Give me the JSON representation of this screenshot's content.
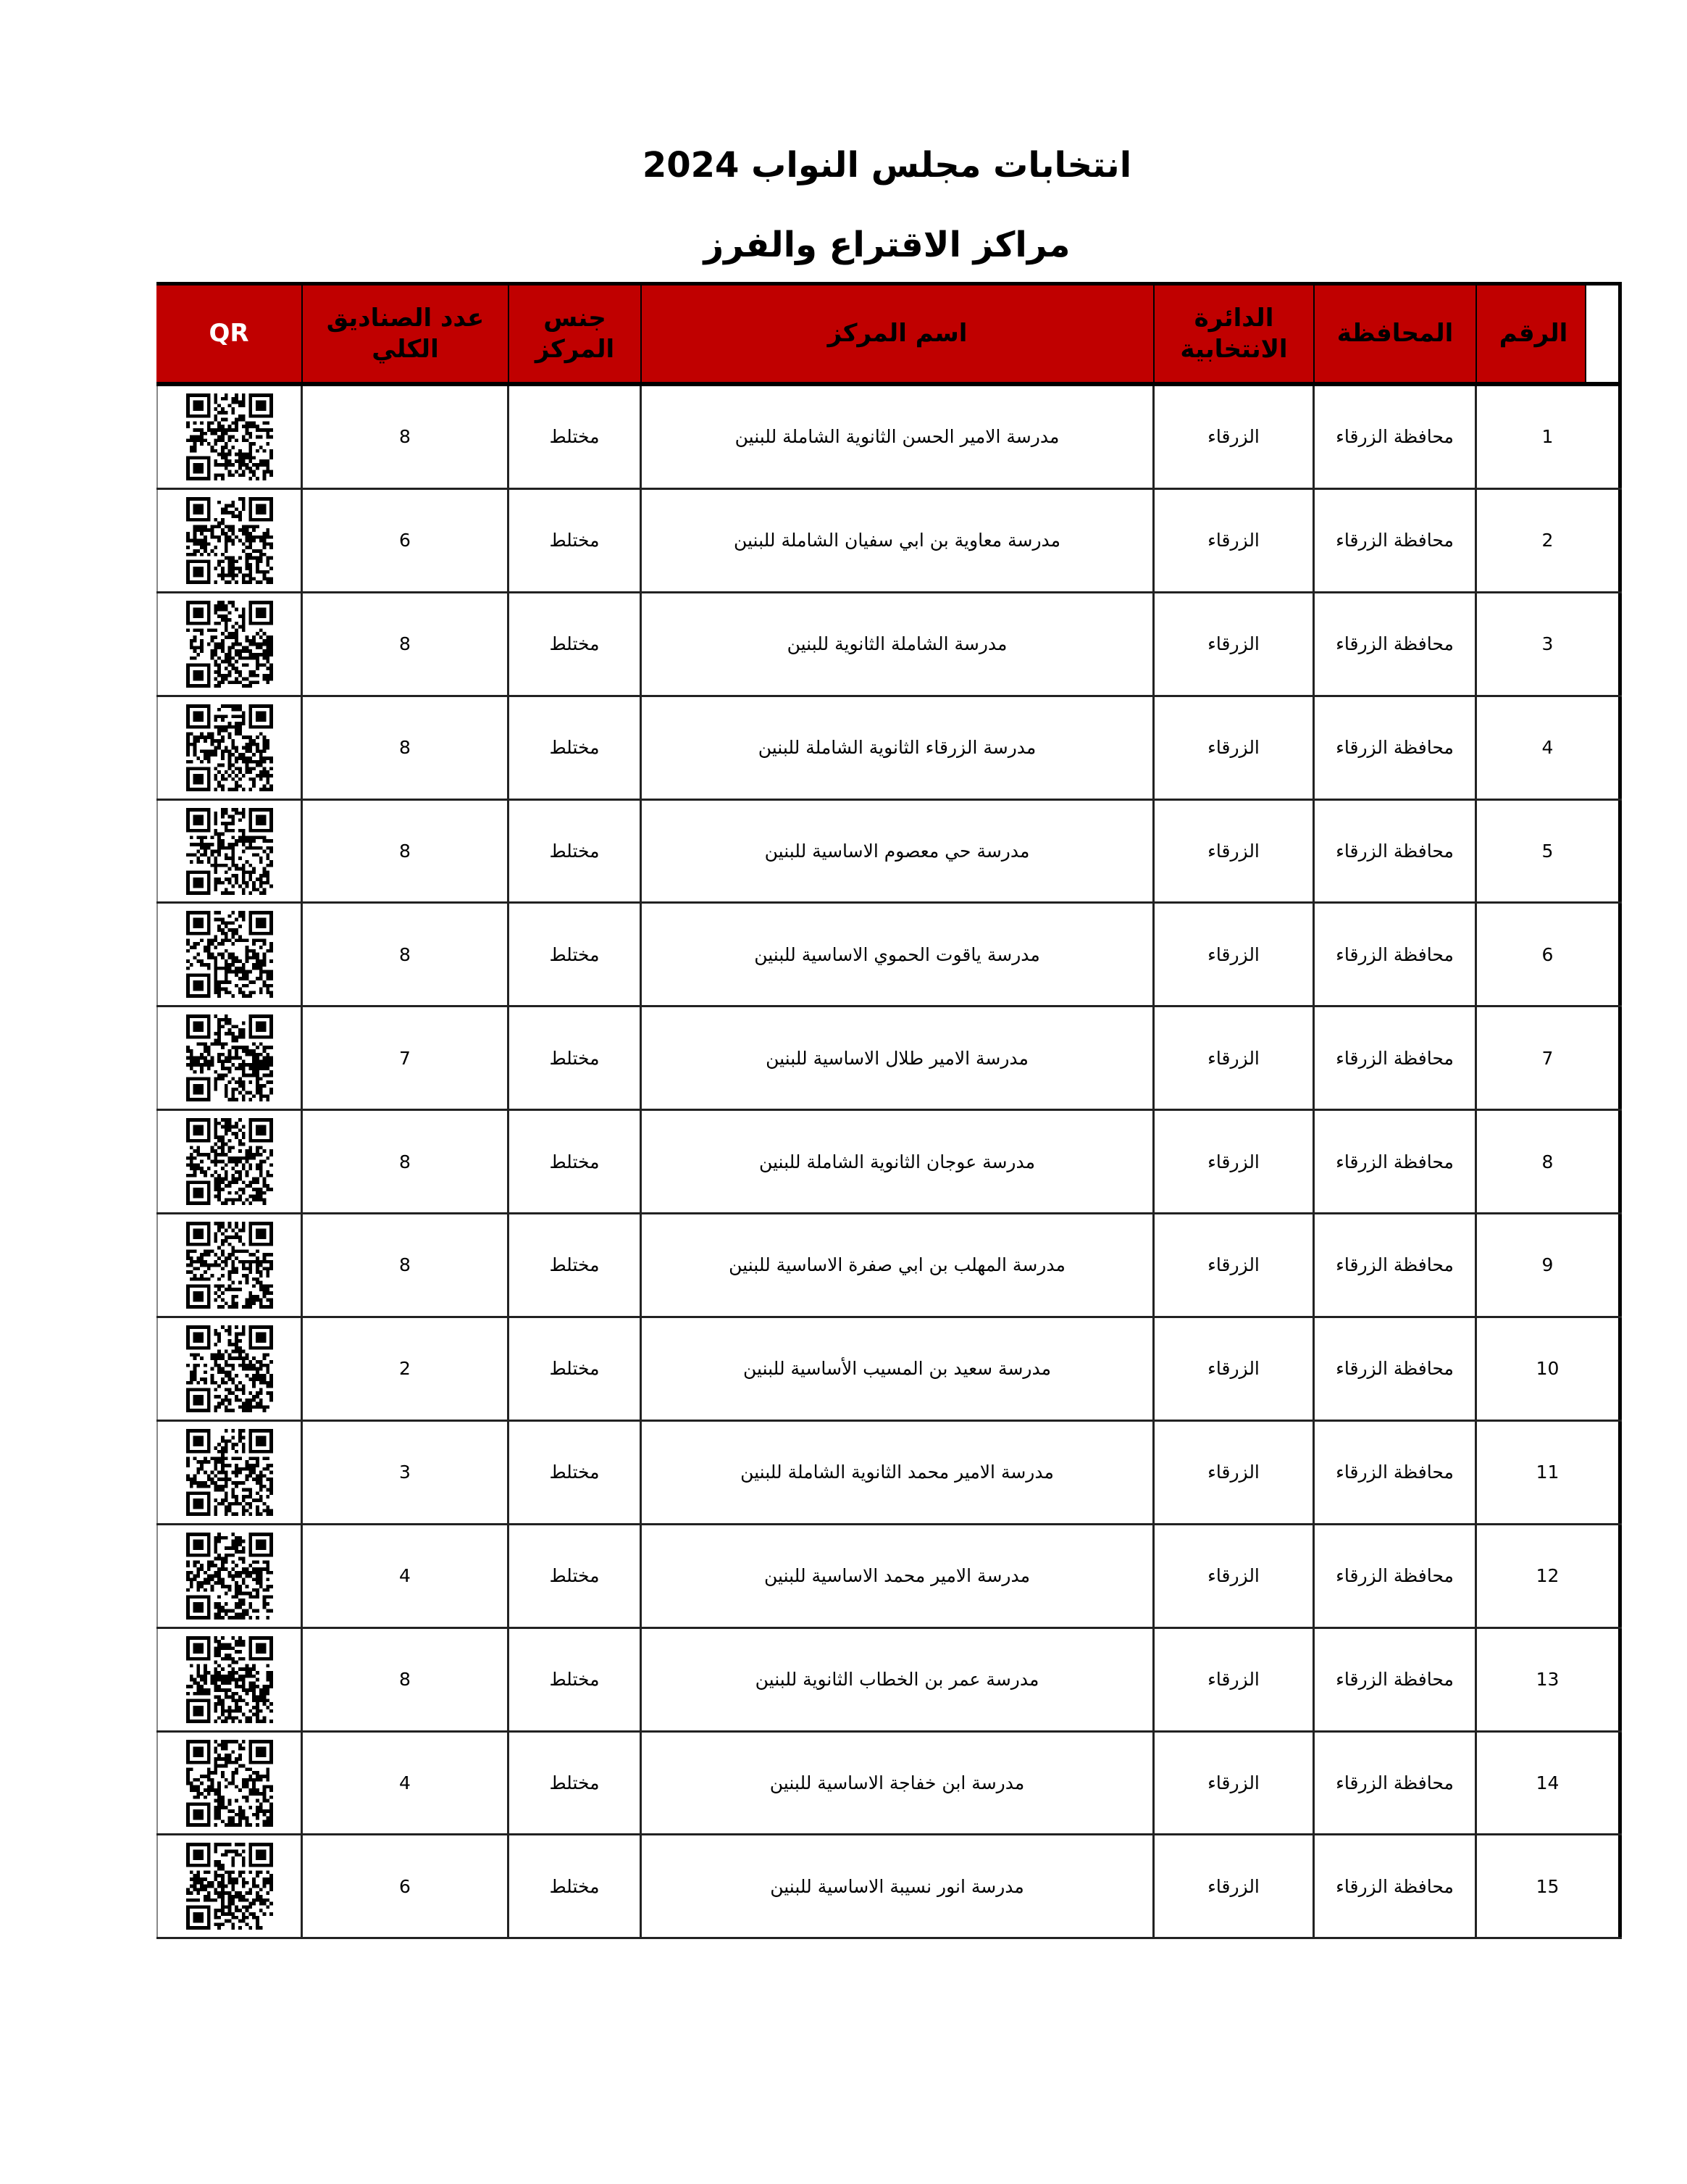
{
  "title": "انتخابات مجلس النواب 2024",
  "subtitle": "مراكز الاقتراع والفرز",
  "colors": {
    "header_bg": "#c00000",
    "qr_header_text": "#ffffff"
  },
  "headers": {
    "qr": "QR",
    "boxes": "عدد الصناديق الكلي",
    "gender": "جنس المركز",
    "name": "اسم المركز",
    "district": "الدائرة الانتخابية",
    "governorate": "المحافظة",
    "number": "الرقم"
  },
  "rows": [
    {
      "number": "1",
      "governorate": "محافظة الزرقاء",
      "district": "الزرقاء",
      "name": "مدرسة الامير الحسن الثانوية الشاملة للبنين",
      "gender": "مختلط",
      "boxes": "8",
      "qr": "qr-code-icon"
    },
    {
      "number": "2",
      "governorate": "محافظة الزرقاء",
      "district": "الزرقاء",
      "name": "مدرسة معاوية بن ابي سفيان  الشاملة للبنين",
      "gender": "مختلط",
      "boxes": "6",
      "qr": "qr-code-icon"
    },
    {
      "number": "3",
      "governorate": "محافظة الزرقاء",
      "district": "الزرقاء",
      "name": "مدرسة الشاملة الثانوية للبنين",
      "gender": "مختلط",
      "boxes": "8",
      "qr": "qr-code-icon"
    },
    {
      "number": "4",
      "governorate": "محافظة الزرقاء",
      "district": "الزرقاء",
      "name": "مدرسة الزرقاء الثانوية الشاملة للبنين",
      "gender": "مختلط",
      "boxes": "8",
      "qr": "qr-code-icon"
    },
    {
      "number": "5",
      "governorate": "محافظة الزرقاء",
      "district": "الزرقاء",
      "name": "مدرسة حي معصوم الاساسية للبنين",
      "gender": "مختلط",
      "boxes": "8",
      "qr": "qr-code-icon"
    },
    {
      "number": "6",
      "governorate": "محافظة الزرقاء",
      "district": "الزرقاء",
      "name": "مدرسة ياقوت الحموي الاساسية للبنين",
      "gender": "مختلط",
      "boxes": "8",
      "qr": "qr-code-icon"
    },
    {
      "number": "7",
      "governorate": "محافظة الزرقاء",
      "district": "الزرقاء",
      "name": "مدرسة الامير طلال الاساسية للبنين",
      "gender": "مختلط",
      "boxes": "7",
      "qr": "qr-code-icon"
    },
    {
      "number": "8",
      "governorate": "محافظة الزرقاء",
      "district": "الزرقاء",
      "name": "مدرسة عوجان الثانوية الشاملة للبنين",
      "gender": "مختلط",
      "boxes": "8",
      "qr": "qr-code-icon"
    },
    {
      "number": "9",
      "governorate": "محافظة الزرقاء",
      "district": "الزرقاء",
      "name": "مدرسة المهلب بن ابي صفرة الاساسية للبنين",
      "gender": "مختلط",
      "boxes": "8",
      "qr": "qr-code-icon"
    },
    {
      "number": "10",
      "governorate": "محافظة الزرقاء",
      "district": "الزرقاء",
      "name": "مدرسة سعيد بن المسيب الأساسية للبنين",
      "gender": "مختلط",
      "boxes": "2",
      "qr": "qr-code-icon"
    },
    {
      "number": "11",
      "governorate": "محافظة الزرقاء",
      "district": "الزرقاء",
      "name": "مدرسة الامير محمد الثانوية الشاملة للبنين",
      "gender": "مختلط",
      "boxes": "3",
      "qr": "qr-code-icon"
    },
    {
      "number": "12",
      "governorate": "محافظة الزرقاء",
      "district": "الزرقاء",
      "name": "مدرسة الامير محمد الاساسية للبنين",
      "gender": "مختلط",
      "boxes": "4",
      "qr": "qr-code-icon"
    },
    {
      "number": "13",
      "governorate": "محافظة الزرقاء",
      "district": "الزرقاء",
      "name": "مدرسة عمر بن الخطاب الثانوية للبنين",
      "gender": "مختلط",
      "boxes": "8",
      "qr": "qr-code-icon"
    },
    {
      "number": "14",
      "governorate": "محافظة الزرقاء",
      "district": "الزرقاء",
      "name": "مدرسة ابن خفاجة الاساسية للبنين",
      "gender": "مختلط",
      "boxes": "4",
      "qr": "qr-code-icon"
    },
    {
      "number": "15",
      "governorate": "محافظة الزرقاء",
      "district": "الزرقاء",
      "name": "مدرسة انور نسيبة الاساسية للبنين",
      "gender": "مختلط",
      "boxes": "6",
      "qr": "qr-code-icon"
    }
  ]
}
